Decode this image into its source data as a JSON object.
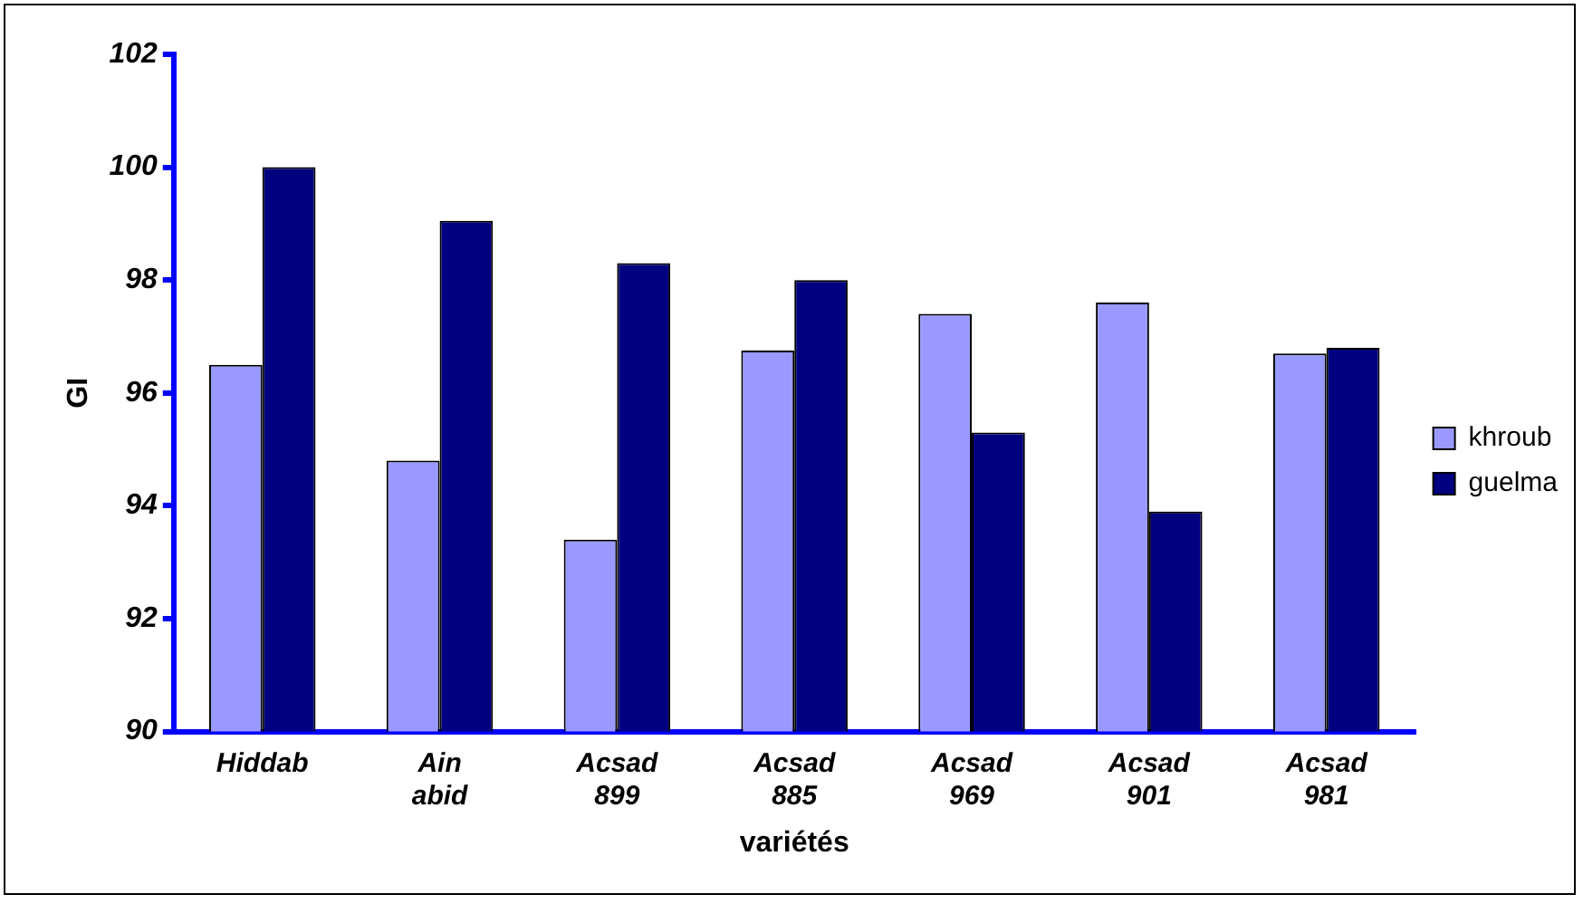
{
  "chart_data": {
    "type": "bar",
    "xlabel": "variétés",
    "ylabel": "GI",
    "categories": [
      "Hiddab",
      "Ain abid",
      "Acsad 899",
      "Acsad 885",
      "Acsad 969",
      "Acsad 901",
      "Acsad 981"
    ],
    "series": [
      {
        "name": "khroub",
        "color": "#9999ff",
        "values": [
          96.5,
          94.8,
          93.4,
          96.75,
          97.4,
          97.6,
          96.7
        ]
      },
      {
        "name": "guelma",
        "color": "#000080",
        "values": [
          100.0,
          99.05,
          98.3,
          98.0,
          95.3,
          93.9,
          96.8
        ]
      }
    ],
    "ylim": [
      90,
      102
    ],
    "yticks": [
      90,
      92,
      94,
      96,
      98,
      100,
      102
    ],
    "grid": false,
    "legend": "right"
  }
}
